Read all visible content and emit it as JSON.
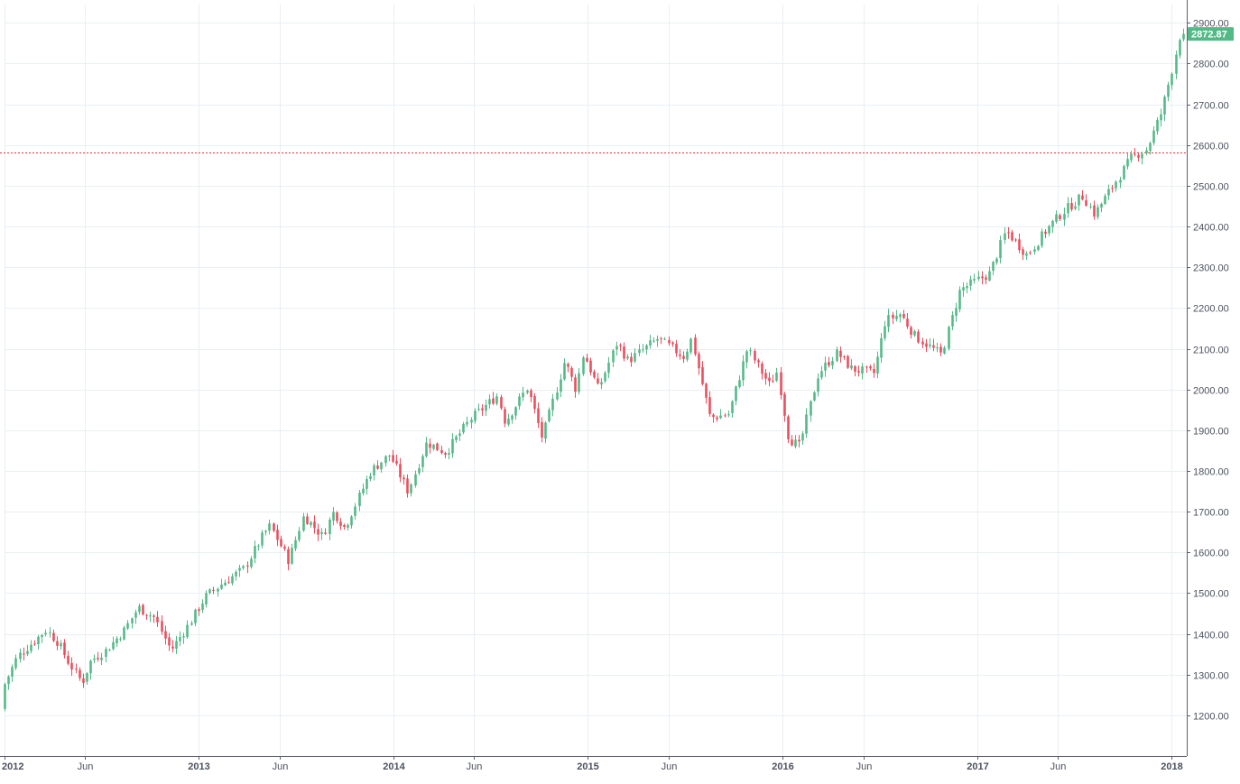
{
  "chart_data": {
    "type": "candlestick",
    "timeframe": "weekly",
    "ylim": [
      1100,
      2945
    ],
    "y_ticks": [
      "1200.00",
      "1300.00",
      "1400.00",
      "1500.00",
      "1600.00",
      "1700.00",
      "1800.00",
      "1900.00",
      "2000.00",
      "2100.00",
      "2200.00",
      "2300.00",
      "2400.00",
      "2500.00",
      "2600.00",
      "2700.00",
      "2800.00",
      "2900.00"
    ],
    "x_ticks": [
      {
        "label": "2012",
        "date": "2012-01-02",
        "bold": true
      },
      {
        "label": "Jun",
        "date": "2012-06-01",
        "bold": false
      },
      {
        "label": "2013",
        "date": "2013-01-01",
        "bold": true
      },
      {
        "label": "Jun",
        "date": "2013-06-01",
        "bold": false
      },
      {
        "label": "2014",
        "date": "2014-01-01",
        "bold": true
      },
      {
        "label": "Jun",
        "date": "2014-06-01",
        "bold": false
      },
      {
        "label": "2015",
        "date": "2015-01-01",
        "bold": true
      },
      {
        "label": "Jun",
        "date": "2015-06-01",
        "bold": false
      },
      {
        "label": "2016",
        "date": "2016-01-01",
        "bold": true
      },
      {
        "label": "Jun",
        "date": "2016-06-01",
        "bold": false
      },
      {
        "label": "2017",
        "date": "2017-01-01",
        "bold": true
      },
      {
        "label": "Jun",
        "date": "2017-06-01",
        "bold": false
      },
      {
        "label": "2018",
        "date": "2018-01-01",
        "bold": true
      }
    ],
    "last_price": 2872.87,
    "last_price_label": "2872.87",
    "horizontal_line": 2582,
    "grid": true,
    "colors": {
      "up": "#53b987",
      "down": "#eb4d5c",
      "grid": "#e9eff2",
      "hline": "#e3323b",
      "axis": "#5d606b",
      "text": "#4c525e",
      "last_price_bg": "#53b987"
    },
    "anchors": [
      {
        "date": "2012-01-02",
        "close": 1260
      },
      {
        "date": "2012-02-01",
        "close": 1345
      },
      {
        "date": "2012-03-26",
        "close": 1410
      },
      {
        "date": "2012-04-16",
        "close": 1380
      },
      {
        "date": "2012-05-07",
        "close": 1330
      },
      {
        "date": "2012-06-01",
        "close": 1280
      },
      {
        "date": "2012-06-18",
        "close": 1335
      },
      {
        "date": "2012-07-16",
        "close": 1360
      },
      {
        "date": "2012-08-20",
        "close": 1410
      },
      {
        "date": "2012-09-14",
        "close": 1465
      },
      {
        "date": "2012-10-15",
        "close": 1440
      },
      {
        "date": "2012-11-15",
        "close": 1360
      },
      {
        "date": "2012-12-17",
        "close": 1420
      },
      {
        "date": "2013-01-18",
        "close": 1490
      },
      {
        "date": "2013-02-15",
        "close": 1520
      },
      {
        "date": "2013-04-01",
        "close": 1560
      },
      {
        "date": "2013-05-06",
        "close": 1640
      },
      {
        "date": "2013-05-20",
        "close": 1665
      },
      {
        "date": "2013-06-24",
        "close": 1580
      },
      {
        "date": "2013-07-22",
        "close": 1690
      },
      {
        "date": "2013-08-26",
        "close": 1640
      },
      {
        "date": "2013-09-16",
        "close": 1700
      },
      {
        "date": "2013-10-07",
        "close": 1660
      },
      {
        "date": "2013-11-25",
        "close": 1800
      },
      {
        "date": "2013-12-30",
        "close": 1840
      },
      {
        "date": "2014-02-03",
        "close": 1750
      },
      {
        "date": "2014-03-10",
        "close": 1870
      },
      {
        "date": "2014-04-14",
        "close": 1845
      },
      {
        "date": "2014-06-02",
        "close": 1930
      },
      {
        "date": "2014-07-21",
        "close": 1985
      },
      {
        "date": "2014-08-04",
        "close": 1920
      },
      {
        "date": "2014-09-15",
        "close": 2005
      },
      {
        "date": "2014-10-13",
        "close": 1880
      },
      {
        "date": "2014-11-24",
        "close": 2070
      },
      {
        "date": "2014-12-15",
        "close": 2000
      },
      {
        "date": "2014-12-29",
        "close": 2090
      },
      {
        "date": "2015-01-26",
        "close": 2000
      },
      {
        "date": "2015-03-02",
        "close": 2115
      },
      {
        "date": "2015-03-23",
        "close": 2070
      },
      {
        "date": "2015-05-18",
        "close": 2125
      },
      {
        "date": "2015-07-06",
        "close": 2080
      },
      {
        "date": "2015-07-20",
        "close": 2125
      },
      {
        "date": "2015-08-24",
        "close": 1930
      },
      {
        "date": "2015-09-28",
        "close": 1940
      },
      {
        "date": "2015-11-02",
        "close": 2100
      },
      {
        "date": "2015-12-14",
        "close": 2010
      },
      {
        "date": "2015-12-28",
        "close": 2045
      },
      {
        "date": "2016-01-18",
        "close": 1880
      },
      {
        "date": "2016-02-08",
        "close": 1860
      },
      {
        "date": "2016-03-14",
        "close": 2040
      },
      {
        "date": "2016-04-18",
        "close": 2090
      },
      {
        "date": "2016-05-16",
        "close": 2050
      },
      {
        "date": "2016-06-27",
        "close": 2040
      },
      {
        "date": "2016-07-18",
        "close": 2170
      },
      {
        "date": "2016-08-15",
        "close": 2185
      },
      {
        "date": "2016-09-12",
        "close": 2130
      },
      {
        "date": "2016-10-31",
        "close": 2085
      },
      {
        "date": "2016-12-05",
        "close": 2245
      },
      {
        "date": "2017-01-30",
        "close": 2285
      },
      {
        "date": "2017-03-01",
        "close": 2390
      },
      {
        "date": "2017-04-10",
        "close": 2330
      },
      {
        "date": "2017-05-15",
        "close": 2390
      },
      {
        "date": "2017-06-19",
        "close": 2440
      },
      {
        "date": "2017-07-24",
        "close": 2475
      },
      {
        "date": "2017-08-14",
        "close": 2430
      },
      {
        "date": "2017-09-18",
        "close": 2500
      },
      {
        "date": "2017-10-23",
        "close": 2570
      },
      {
        "date": "2017-11-20",
        "close": 2590
      },
      {
        "date": "2017-12-18",
        "close": 2680
      },
      {
        "date": "2018-01-08",
        "close": 2790
      },
      {
        "date": "2018-01-22",
        "close": 2872.87
      }
    ]
  }
}
